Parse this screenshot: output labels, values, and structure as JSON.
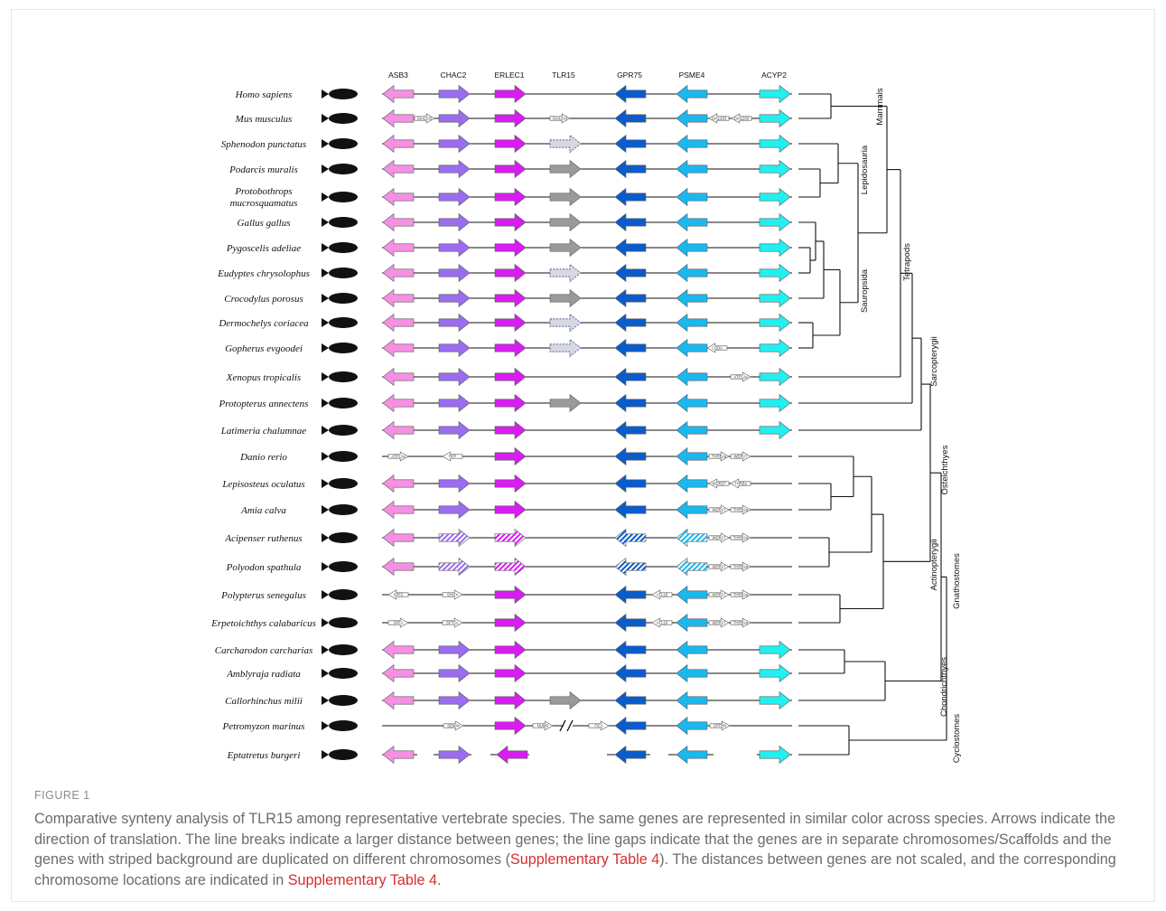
{
  "figure": {
    "label": "FIGURE 1",
    "caption_parts": [
      {
        "text": "Comparative synteny analysis of TLR15 among representative vertebrate species. The same genes are represented in similar color across species. Arrows indicate the direction of translation. The line breaks indicate a larger distance between genes; the line gaps indicate that the genes are in separate chromosomes/Scaffolds and the genes with striped background are duplicated on different chromosomes (",
        "ref": false
      },
      {
        "text": "Supplementary Table 4",
        "ref": true
      },
      {
        "text": "). The distances between genes are not scaled, and the corresponding chromosome locations are indicated in ",
        "ref": false
      },
      {
        "text": "Supplementary Table 4",
        "ref": true
      },
      {
        "text": ".",
        "ref": false
      }
    ]
  },
  "colors": {
    "ASB3": "#f590e2",
    "CHAC2": "#9b6cf0",
    "ERLEC1": "#d81df0",
    "TLR15": "#9a9a9a",
    "GPR75": "#0a5ccc",
    "PSME4": "#1bb8ee",
    "ACYP2": "#22f0f0",
    "outline": "#5a5a5a",
    "line": "#111111"
  },
  "gene_headers": [
    "ASB3",
    "CHAC2",
    "ERLEC1",
    "TLR15",
    "GPR75",
    "PSME4",
    "ACYP2"
  ],
  "species": [
    {
      "name": "Homo sapiens",
      "icon": "human-silhouette-icon"
    },
    {
      "name": "Mus musculus",
      "icon": "mouse-silhouette-icon"
    },
    {
      "name": "Sphenodon punctatus",
      "icon": "tuatara-silhouette-icon"
    },
    {
      "name": "Podarcis muralis",
      "icon": "lizard-silhouette-icon"
    },
    {
      "name": "Protobothrops mucrosquamatus",
      "icon": "snake-silhouette-icon"
    },
    {
      "name": "Gallus gallus",
      "icon": "chicken-silhouette-icon"
    },
    {
      "name": "Pygoscelis adeliae",
      "icon": "penguin-silhouette-icon"
    },
    {
      "name": "Eudyptes chrysolophus",
      "icon": "penguin-silhouette-icon"
    },
    {
      "name": "Crocodylus porosus",
      "icon": "crocodile-silhouette-icon"
    },
    {
      "name": "Dermochelys coriacea",
      "icon": "sea-turtle-silhouette-icon"
    },
    {
      "name": "Gopherus evgoodei",
      "icon": "tortoise-silhouette-icon"
    },
    {
      "name": "Xenopus tropicalis",
      "icon": "frog-silhouette-icon"
    },
    {
      "name": "Protopterus annectens",
      "icon": "lungfish-silhouette-icon"
    },
    {
      "name": "Latimeria chalumnae",
      "icon": "coelacanth-silhouette-icon"
    },
    {
      "name": "Danio rerio",
      "icon": "zebrafish-silhouette-icon"
    },
    {
      "name": "Lepisosteus oculatus",
      "icon": "gar-silhouette-icon"
    },
    {
      "name": "Amia calva",
      "icon": "bowfin-silhouette-icon"
    },
    {
      "name": "Acipenser ruthenus",
      "icon": "sturgeon-silhouette-icon"
    },
    {
      "name": "Polyodon spathula",
      "icon": "paddlefish-silhouette-icon"
    },
    {
      "name": "Polypterus senegalus",
      "icon": "bichir-silhouette-icon"
    },
    {
      "name": "Erpetoichthys calabaricus",
      "icon": "ropefish-silhouette-icon"
    },
    {
      "name": "Carcharodon carcharias",
      "icon": "shark-silhouette-icon"
    },
    {
      "name": "Amblyraja radiata",
      "icon": "skate-silhouette-icon"
    },
    {
      "name": "Callorhinchus milii",
      "icon": "chimaera-silhouette-icon"
    },
    {
      "name": "Petromyzon marinus",
      "icon": "lamprey-silhouette-icon"
    },
    {
      "name": "Eptatretus burgeri",
      "icon": "hagfish-silhouette-icon"
    }
  ],
  "small_gene_labels": {
    "Gm1202": "Gm1202",
    "Gm1204": "Gm1204",
    "Gm1263": "Gm1263",
    "Gm1203": "Gm1203",
    "CSDA": "CSDA",
    "ATP12a": "ATP12a",
    "RFP": "RFP",
    "THRB2a": "THRB2a",
    "WDR27": "WDR27",
    "THRB2": "THRB2",
    "SPF2": "SPF2",
    "SHOX": "SHOX",
    "ATL18": "ATL18",
    "SPTOL": "SPTOL",
    "SEMIN": "SEMIN",
    "NUMB": "NUMB",
    "FIC1": "FIC1",
    "SPTBN": "SPTBN"
  },
  "clades": {
    "mammals": "Mammals",
    "lepidosauria": "Lepidosauria",
    "sauropsida": "Sauropsida",
    "tetrapods": "Tetrapods",
    "sarcopterygii": "Sarcopterygii",
    "osteichthyes": "Osteichthyes",
    "actinopterygii": "Actinopterygii",
    "gnathostomes": "Gnathostomes",
    "chondrichthyes": "Chondrichthyes",
    "cyclostomes": "Cyclostomes"
  }
}
